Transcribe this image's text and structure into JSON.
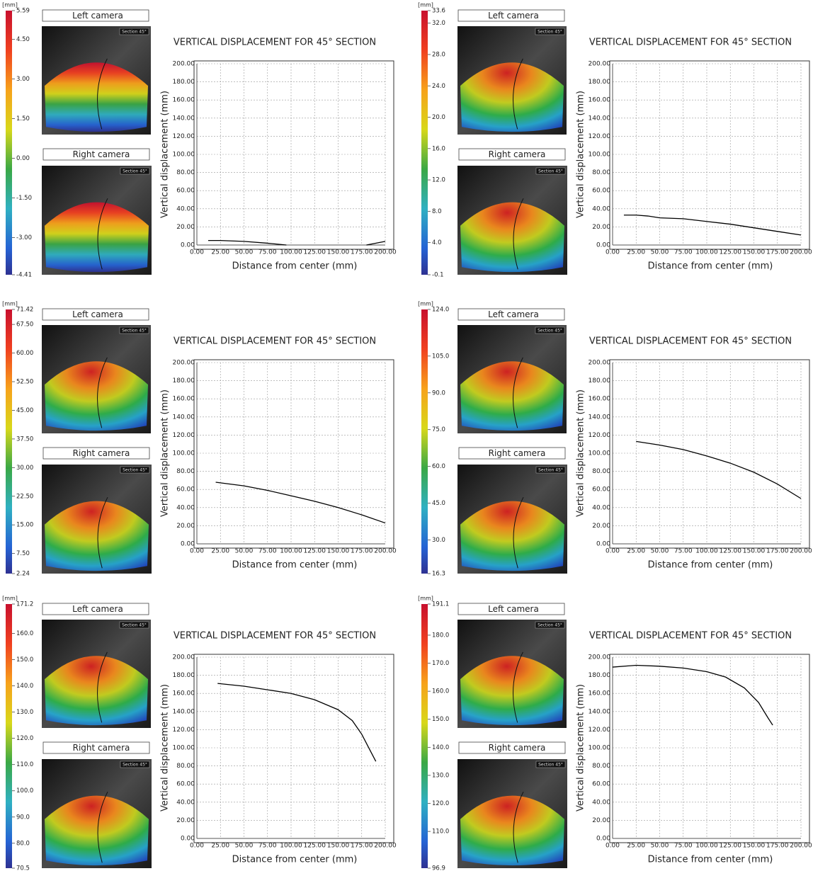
{
  "chart_data": [
    {
      "type": "line",
      "title": "VERTICAL DISPLACEMENT FOR 45° SECTION",
      "x_label": "Distance from center (mm)",
      "y_label": "Vertical displacement (mm)",
      "left_camera": "Left camera",
      "right_camera": "Right camera",
      "section": "Section 45°",
      "colorbar_unit": "[mm]",
      "clim": [
        -4.41,
        5.59
      ],
      "colorbar_ticks": [
        5.59,
        {
          "value": 4.5,
          "label": "4.50"
        },
        {
          "value": 3,
          "label": "3.00"
        },
        {
          "value": 1.5,
          "label": "1.50"
        },
        {
          "value": 0,
          "label": "0.00"
        },
        {
          "value": -1.5,
          "label": "-1.50"
        },
        {
          "value": -3,
          "label": "-3.00"
        },
        -4.41
      ],
      "xlim": [
        0,
        200
      ],
      "ylim": [
        0,
        200
      ],
      "xticks": [
        {
          "value": 0,
          "label": "0.00"
        },
        {
          "value": 25,
          "label": "25.00"
        },
        {
          "value": 50,
          "label": "50.00"
        },
        {
          "value": 75,
          "label": "75.00"
        },
        {
          "value": 100,
          "label": "100.00"
        },
        {
          "value": 125,
          "label": "125.00"
        },
        {
          "value": 150,
          "label": "150.00"
        },
        {
          "value": 175,
          "label": "175.00"
        },
        {
          "value": 200,
          "label": "200.00"
        }
      ],
      "yticks": [
        {
          "value": 0,
          "label": "0.00"
        },
        {
          "value": 20,
          "label": "20.00"
        },
        {
          "value": 40,
          "label": "40.00"
        },
        {
          "value": 60,
          "label": "60.00"
        },
        {
          "value": 80,
          "label": "80.00"
        },
        {
          "value": 100,
          "label": "100.00"
        },
        {
          "value": 120,
          "label": "120.00"
        },
        {
          "value": 140,
          "label": "140.00"
        },
        {
          "value": 160,
          "label": "160.00"
        },
        {
          "value": 180,
          "label": "180.00"
        },
        {
          "value": 200,
          "label": "200.00"
        }
      ],
      "grid": true,
      "color": "#000000",
      "x": [
        12,
        25,
        50,
        75,
        95,
        137.5,
        180,
        200
      ],
      "values": [
        5,
        5,
        4,
        2,
        0,
        null,
        0,
        4
      ]
    },
    {
      "type": "line",
      "title": "VERTICAL DISPLACEMENT FOR 45° SECTION",
      "x_label": "Distance from center (mm)",
      "y_label": "Vertical displacement (mm)",
      "left_camera": "Left camera",
      "right_camera": "Right camera",
      "section": "Section 45°",
      "colorbar_unit": "[mm]",
      "clim": [
        -0.1,
        33.6
      ],
      "colorbar_ticks": [
        33.6,
        {
          "value": 32,
          "label": "32.0"
        },
        {
          "value": 28,
          "label": "28.0"
        },
        {
          "value": 24,
          "label": "24.0"
        },
        {
          "value": 20,
          "label": "20.0"
        },
        {
          "value": 16,
          "label": "16.0"
        },
        {
          "value": 12,
          "label": "12.0"
        },
        {
          "value": 8,
          "label": "8.0"
        },
        {
          "value": 4,
          "label": "4.0"
        },
        -0.1
      ],
      "xlim": [
        0,
        200
      ],
      "ylim": [
        0,
        200
      ],
      "xticks": [
        {
          "value": 0,
          "label": "0.00"
        },
        {
          "value": 25,
          "label": "25.00"
        },
        {
          "value": 50,
          "label": "50.00"
        },
        {
          "value": 75,
          "label": "75.00"
        },
        {
          "value": 100,
          "label": "100.00"
        },
        {
          "value": 125,
          "label": "125.00"
        },
        {
          "value": 150,
          "label": "150.00"
        },
        {
          "value": 175,
          "label": "175.00"
        },
        {
          "value": 200,
          "label": "200.00"
        }
      ],
      "yticks": [
        {
          "value": 0,
          "label": "0.00"
        },
        {
          "value": 20,
          "label": "20.00"
        },
        {
          "value": 40,
          "label": "40.00"
        },
        {
          "value": 60,
          "label": "60.00"
        },
        {
          "value": 80,
          "label": "80.00"
        },
        {
          "value": 100,
          "label": "100.00"
        },
        {
          "value": 120,
          "label": "120.00"
        },
        {
          "value": 140,
          "label": "140.00"
        },
        {
          "value": 160,
          "label": "160.00"
        },
        {
          "value": 180,
          "label": "180.00"
        },
        {
          "value": 200,
          "label": "200.00"
        }
      ],
      "grid": true,
      "color": "#000000",
      "x": [
        12,
        25,
        37.5,
        50,
        75,
        100,
        125,
        150,
        175,
        200
      ],
      "values": [
        33,
        33,
        32,
        30,
        29,
        26,
        23,
        19,
        15,
        11
      ]
    },
    {
      "type": "line",
      "title": "VERTICAL DISPLACEMENT FOR 45° SECTION",
      "x_label": "Distance from center (mm)",
      "y_label": "Vertical displacement (mm)",
      "left_camera": "Left camera",
      "right_camera": "Right camera",
      "section": "Section 45°",
      "colorbar_unit": "[mm]",
      "clim": [
        2.24,
        71.42
      ],
      "colorbar_ticks": [
        71.42,
        {
          "value": 67.5,
          "label": "67.50"
        },
        {
          "value": 60,
          "label": "60.00"
        },
        {
          "value": 52.5,
          "label": "52.50"
        },
        {
          "value": 45,
          "label": "45.00"
        },
        {
          "value": 37.5,
          "label": "37.50"
        },
        {
          "value": 30,
          "label": "30.00"
        },
        {
          "value": 22.5,
          "label": "22.50"
        },
        {
          "value": 15,
          "label": "15.00"
        },
        {
          "value": 7.5,
          "label": "7.50"
        },
        2.24
      ],
      "xlim": [
        0,
        200
      ],
      "ylim": [
        0,
        200
      ],
      "xticks": [
        {
          "value": 0,
          "label": "0.00"
        },
        {
          "value": 25,
          "label": "25.00"
        },
        {
          "value": 50,
          "label": "50.00"
        },
        {
          "value": 75,
          "label": "75.00"
        },
        {
          "value": 100,
          "label": "100.00"
        },
        {
          "value": 125,
          "label": "125.00"
        },
        {
          "value": 150,
          "label": "150.00"
        },
        {
          "value": 175,
          "label": "175.00"
        },
        {
          "value": 200,
          "label": "200.00"
        }
      ],
      "yticks": [
        {
          "value": 0,
          "label": "0.00"
        },
        {
          "value": 20,
          "label": "20.00"
        },
        {
          "value": 40,
          "label": "40.00"
        },
        {
          "value": 60,
          "label": "60.00"
        },
        {
          "value": 80,
          "label": "80.00"
        },
        {
          "value": 100,
          "label": "100.00"
        },
        {
          "value": 120,
          "label": "120.00"
        },
        {
          "value": 140,
          "label": "140.00"
        },
        {
          "value": 160,
          "label": "160.00"
        },
        {
          "value": 180,
          "label": "180.00"
        },
        {
          "value": 200,
          "label": "200.00"
        }
      ],
      "grid": true,
      "color": "#000000",
      "x": [
        20,
        50,
        75,
        100,
        125,
        150,
        175,
        200
      ],
      "values": [
        68,
        64,
        59,
        53,
        47,
        40,
        32,
        23
      ]
    },
    {
      "type": "line",
      "title": "VERTICAL DISPLACEMENT FOR 45° SECTION",
      "x_label": "Distance from center (mm)",
      "y_label": "Vertical displacement (mm)",
      "left_camera": "Left camera",
      "right_camera": "Right camera",
      "section": "Section 45°",
      "colorbar_unit": "[mm]",
      "clim": [
        16.3,
        124
      ],
      "colorbar_ticks": [
        {
          "value": 124,
          "label": "124.0"
        },
        {
          "value": 105,
          "label": "105.0"
        },
        {
          "value": 90,
          "label": "90.0"
        },
        {
          "value": 75,
          "label": "75.0"
        },
        {
          "value": 60,
          "label": "60.0"
        },
        {
          "value": 45,
          "label": "45.0"
        },
        {
          "value": 30,
          "label": "30.0"
        },
        16.3
      ],
      "xlim": [
        0,
        200
      ],
      "ylim": [
        0,
        200
      ],
      "xticks": [
        {
          "value": 0,
          "label": "0.00"
        },
        {
          "value": 25,
          "label": "25.00"
        },
        {
          "value": 50,
          "label": "50.00"
        },
        {
          "value": 75,
          "label": "75.00"
        },
        {
          "value": 100,
          "label": "100.00"
        },
        {
          "value": 125,
          "label": "125.00"
        },
        {
          "value": 150,
          "label": "150.00"
        },
        {
          "value": 175,
          "label": "175.00"
        },
        {
          "value": 200,
          "label": "200.00"
        }
      ],
      "yticks": [
        {
          "value": 0,
          "label": "0.00"
        },
        {
          "value": 20,
          "label": "20.00"
        },
        {
          "value": 40,
          "label": "40.00"
        },
        {
          "value": 60,
          "label": "60.00"
        },
        {
          "value": 80,
          "label": "80.00"
        },
        {
          "value": 100,
          "label": "100.00"
        },
        {
          "value": 120,
          "label": "120.00"
        },
        {
          "value": 140,
          "label": "140.00"
        },
        {
          "value": 160,
          "label": "160.00"
        },
        {
          "value": 180,
          "label": "180.00"
        },
        {
          "value": 200,
          "label": "200.00"
        }
      ],
      "grid": true,
      "color": "#000000",
      "x": [
        25,
        50,
        75,
        100,
        125,
        150,
        175,
        200
      ],
      "values": [
        113,
        109,
        104,
        97,
        89,
        79,
        66,
        50
      ]
    },
    {
      "type": "line",
      "title": "VERTICAL DISPLACEMENT FOR 45° SECTION",
      "x_label": "Distance from center (mm)",
      "y_label": "Vertical displacement (mm)",
      "left_camera": "Left camera",
      "right_camera": "Right camera",
      "section": "Section 45°",
      "colorbar_unit": "[mm]",
      "clim": [
        70.5,
        171.2
      ],
      "colorbar_ticks": [
        171.2,
        {
          "value": 160,
          "label": "160.0"
        },
        {
          "value": 150,
          "label": "150.0"
        },
        {
          "value": 140,
          "label": "140.0"
        },
        {
          "value": 130,
          "label": "130.0"
        },
        {
          "value": 120,
          "label": "120.0"
        },
        {
          "value": 110,
          "label": "110.0"
        },
        {
          "value": 100,
          "label": "100.0"
        },
        {
          "value": 90,
          "label": "90.0"
        },
        {
          "value": 80,
          "label": "80.0"
        },
        70.5
      ],
      "xlim": [
        0,
        200
      ],
      "ylim": [
        0,
        200
      ],
      "xticks": [
        {
          "value": 0,
          "label": "0.00"
        },
        {
          "value": 25,
          "label": "25.00"
        },
        {
          "value": 50,
          "label": "50.00"
        },
        {
          "value": 75,
          "label": "75.00"
        },
        {
          "value": 100,
          "label": "100.00"
        },
        {
          "value": 125,
          "label": "125.00"
        },
        {
          "value": 150,
          "label": "150.00"
        },
        {
          "value": 175,
          "label": "175.00"
        },
        {
          "value": 200,
          "label": "200.00"
        }
      ],
      "yticks": [
        {
          "value": 0,
          "label": "0.00"
        },
        {
          "value": 20,
          "label": "20.00"
        },
        {
          "value": 40,
          "label": "40.00"
        },
        {
          "value": 60,
          "label": "60.00"
        },
        {
          "value": 80,
          "label": "80.00"
        },
        {
          "value": 100,
          "label": "100.00"
        },
        {
          "value": 120,
          "label": "120.00"
        },
        {
          "value": 140,
          "label": "140.00"
        },
        {
          "value": 160,
          "label": "160.00"
        },
        {
          "value": 180,
          "label": "180.00"
        },
        {
          "value": 200,
          "label": "200.00"
        }
      ],
      "grid": true,
      "color": "#000000",
      "x": [
        22,
        50,
        75,
        100,
        125,
        150,
        165,
        175,
        185,
        190
      ],
      "values": [
        171,
        168,
        164,
        160,
        153,
        142,
        130,
        115,
        95,
        85
      ]
    },
    {
      "type": "line",
      "title": "VERTICAL DISPLACEMENT FOR 45° SECTION",
      "x_label": "Distance from center (mm)",
      "y_label": "Vertical displacement (mm)",
      "left_camera": "Left camera",
      "right_camera": "Right camera",
      "section": "Section 45°",
      "colorbar_unit": "[mm]",
      "clim": [
        96.9,
        191.1
      ],
      "colorbar_ticks": [
        191.1,
        {
          "value": 180,
          "label": "180.0"
        },
        {
          "value": 170,
          "label": "170.0"
        },
        {
          "value": 160,
          "label": "160.0"
        },
        {
          "value": 150,
          "label": "150.0"
        },
        {
          "value": 140,
          "label": "140.0"
        },
        {
          "value": 130,
          "label": "130.0"
        },
        {
          "value": 120,
          "label": "120.0"
        },
        {
          "value": 110,
          "label": "110.0"
        },
        96.9
      ],
      "xlim": [
        0,
        200
      ],
      "ylim": [
        0,
        200
      ],
      "xticks": [
        {
          "value": 0,
          "label": "0.00"
        },
        {
          "value": 25,
          "label": "25.00"
        },
        {
          "value": 50,
          "label": "50.00"
        },
        {
          "value": 75,
          "label": "75.00"
        },
        {
          "value": 100,
          "label": "100.00"
        },
        {
          "value": 125,
          "label": "125.00"
        },
        {
          "value": 150,
          "label": "150.00"
        },
        {
          "value": 175,
          "label": "175.00"
        },
        {
          "value": 200,
          "label": "200.00"
        }
      ],
      "yticks": [
        {
          "value": 0,
          "label": "0.00"
        },
        {
          "value": 20,
          "label": "20.00"
        },
        {
          "value": 40,
          "label": "40.00"
        },
        {
          "value": 60,
          "label": "60.00"
        },
        {
          "value": 80,
          "label": "80.00"
        },
        {
          "value": 100,
          "label": "100.00"
        },
        {
          "value": 120,
          "label": "120.00"
        },
        {
          "value": 140,
          "label": "140.00"
        },
        {
          "value": 160,
          "label": "160.00"
        },
        {
          "value": 180,
          "label": "180.00"
        },
        {
          "value": 200,
          "label": "200.00"
        }
      ],
      "grid": true,
      "color": "#000000",
      "x": [
        0,
        25,
        50,
        75,
        100,
        120,
        140,
        155,
        165,
        170
      ],
      "values": [
        189,
        191,
        190,
        188,
        184,
        178,
        166,
        150,
        133,
        125
      ]
    }
  ]
}
